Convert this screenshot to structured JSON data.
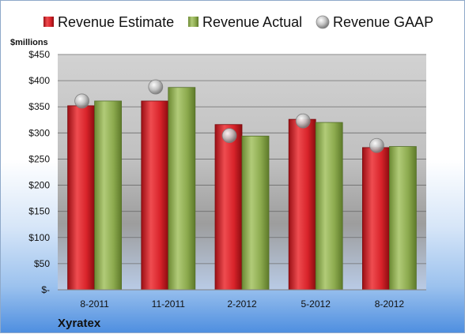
{
  "chart_data": {
    "type": "bar",
    "title": "",
    "ylabel": "$millions",
    "company": "Xyratex",
    "categories": [
      "8-2011",
      "11-2011",
      "2-2012",
      "5-2012",
      "8-2012"
    ],
    "ylim": [
      0,
      450
    ],
    "yticks": [
      0,
      50,
      100,
      150,
      200,
      250,
      300,
      350,
      400,
      450
    ],
    "ytick_labels": [
      "$-",
      "$50",
      "$100",
      "$150",
      "$200",
      "$250",
      "$300",
      "$350",
      "$400",
      "$450"
    ],
    "grid": true,
    "legend_position": "top",
    "series": [
      {
        "name": "Revenue Estimate",
        "kind": "bar",
        "color": "#d8232a",
        "values": [
          352,
          361,
          316,
          326,
          272
        ]
      },
      {
        "name": "Revenue Actual",
        "kind": "bar",
        "color": "#8caa4e",
        "values": [
          361,
          387,
          294,
          320,
          274
        ]
      },
      {
        "name": "Revenue GAAP",
        "kind": "marker",
        "color": "#b8b8b8",
        "values": [
          361,
          388,
          295,
          323,
          276
        ]
      }
    ]
  }
}
